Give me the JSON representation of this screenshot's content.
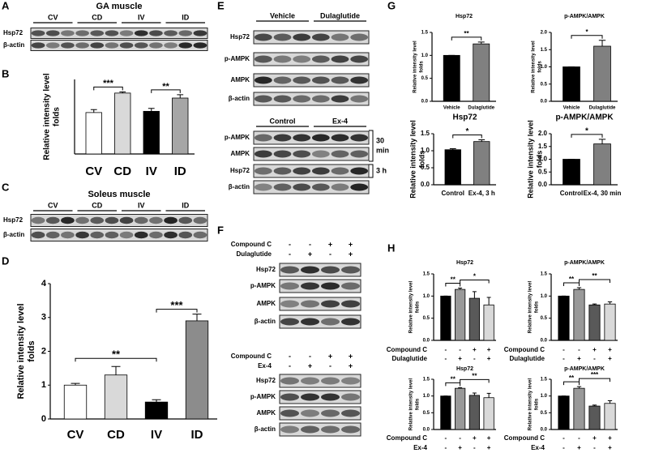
{
  "panel_labels": [
    "A",
    "B",
    "C",
    "D",
    "E",
    "F",
    "G",
    "H"
  ],
  "blots": {
    "A": {
      "title": "GA muscle",
      "groups": [
        "CV",
        "CD",
        "IV",
        "ID"
      ],
      "rows": [
        "Hsp72",
        "β-actin"
      ]
    },
    "C": {
      "title": "Soleus muscle",
      "groups": [
        "CV",
        "CD",
        "IV",
        "ID"
      ],
      "rows": [
        "Hsp72",
        "β-actin"
      ]
    },
    "E1": {
      "groups": [
        "Vehicle",
        "Dulaglutide"
      ],
      "rows": [
        "Hsp72",
        "p-AMPK",
        "AMPK",
        "β-actin"
      ]
    },
    "E2": {
      "groups": [
        "Control",
        "Ex-4"
      ],
      "rows": [
        "p-AMPK",
        "AMPK",
        "Hsp72",
        "β-actin"
      ],
      "brackets": [
        [
          "30",
          "min"
        ],
        [
          "3 h"
        ]
      ]
    },
    "F1": {
      "treatments": [
        {
          "name": "Compound C",
          "signs": [
            "-",
            "-",
            "+",
            "+"
          ]
        },
        {
          "name": "Dulaglutide",
          "signs": [
            "-",
            "+",
            "-",
            "+"
          ]
        }
      ],
      "rows": [
        "Hsp72",
        "p-AMPK",
        "AMPK",
        "β-actin"
      ]
    },
    "F2": {
      "treatments": [
        {
          "name": "Compound C",
          "signs": [
            "-",
            "-",
            "+",
            "+"
          ]
        },
        {
          "name": "Ex-4",
          "signs": [
            "-",
            "+",
            "-",
            "+"
          ]
        }
      ],
      "rows": [
        "Hsp72",
        "p-AMPK",
        "AMPK",
        "β-actin"
      ]
    }
  },
  "chart_data": [
    {
      "type": "bar",
      "categories": [
        "CV",
        "CD",
        "IV",
        "ID"
      ],
      "values": [
        1,
        1.47,
        1.03,
        1.35
      ],
      "errors": [
        0.07,
        0.03,
        0.07,
        0.08
      ],
      "colors": [
        "#ffffff",
        "#d9d9d9",
        "#000000",
        "#a6a6a6"
      ],
      "ylabel": [
        "Relative intensity level",
        "folds"
      ],
      "ylim": [
        0,
        1.8
      ],
      "annotations": [
        "***",
        "**"
      ]
    },
    {
      "type": "bar",
      "categories": [
        "CV",
        "CD",
        "IV",
        "ID"
      ],
      "values": [
        1,
        1.3,
        0.5,
        2.9
      ],
      "errors": [
        0.05,
        0.25,
        0.07,
        0.2
      ],
      "colors": [
        "#ffffff",
        "#d9d9d9",
        "#000000",
        "#8c8c8c"
      ],
      "ylabel": [
        "Relative intensity level",
        "folds"
      ],
      "ylim": [
        0,
        4
      ],
      "yticks": [
        0,
        1,
        2,
        3,
        4
      ],
      "annotations": [
        "**",
        "***"
      ]
    },
    {
      "type": "bar",
      "title": "Hsp72",
      "categories": [
        "Vehicle",
        "Dulaglutide"
      ],
      "values": [
        1,
        1.25
      ],
      "errors": [
        0,
        0.04
      ],
      "colors": [
        "#000000",
        "#808080"
      ],
      "ylabel": [
        "Relative intensity level",
        "folds"
      ],
      "ylim": [
        0,
        1.5
      ],
      "yticks": [
        {
          "value": 0,
          "label": "0.0"
        },
        {
          "value": 0.5,
          "label": "0.5"
        },
        {
          "value": 1,
          "label": "1.0"
        },
        {
          "value": 1.5,
          "label": "1.5"
        }
      ],
      "annotations": [
        "**"
      ]
    },
    {
      "type": "bar",
      "title": "p-AMPK/AMPK",
      "categories": [
        "Vehicle",
        "Dulaglutide"
      ],
      "values": [
        1,
        1.6
      ],
      "errors": [
        0,
        0.17
      ],
      "colors": [
        "#000000",
        "#808080"
      ],
      "ylabel": [
        "Relative intensity level",
        "folds"
      ],
      "ylim": [
        0,
        2
      ],
      "yticks": [
        {
          "value": 0,
          "label": "0.0"
        },
        {
          "value": 0.5,
          "label": "0.5"
        },
        {
          "value": 1,
          "label": "1.0"
        },
        {
          "value": 1.5,
          "label": "1.5"
        },
        {
          "value": 2,
          "label": "2.0"
        }
      ],
      "annotations": [
        "*"
      ]
    },
    {
      "type": "bar",
      "title": "Hsp72",
      "categories": [
        "Control",
        "Ex-4, 3 h"
      ],
      "values": [
        1.03,
        1.27
      ],
      "errors": [
        0.03,
        0.05
      ],
      "colors": [
        "#000000",
        "#808080"
      ],
      "ylabel": [
        "Relative intensity level",
        "folds"
      ],
      "ylim": [
        0,
        1.5
      ],
      "yticks": [
        {
          "value": 0,
          "label": "0.0"
        },
        {
          "value": 0.5,
          "label": "0.5"
        },
        {
          "value": 1,
          "label": "1.0"
        },
        {
          "value": 1.5,
          "label": "1.5"
        }
      ],
      "annotations": [
        "*"
      ]
    },
    {
      "type": "bar",
      "title": "p-AMPK/AMPK",
      "categories": [
        "Control",
        "Ex-4, 30 min"
      ],
      "values": [
        1,
        1.6
      ],
      "errors": [
        0,
        0.18
      ],
      "colors": [
        "#000000",
        "#808080"
      ],
      "ylabel": [
        "Relative intensity level",
        "folds"
      ],
      "ylim": [
        0,
        2
      ],
      "yticks": [
        {
          "value": 0,
          "label": "0.0"
        },
        {
          "value": 0.5,
          "label": "0.5"
        },
        {
          "value": 1,
          "label": "1.0"
        },
        {
          "value": 1.5,
          "label": "1.5"
        },
        {
          "value": 2,
          "label": "2.0"
        }
      ],
      "annotations": [
        "*"
      ]
    },
    {
      "type": "bar",
      "title": "Hsp72",
      "categories": [
        null,
        null,
        null,
        null
      ],
      "values": [
        1,
        1.15,
        0.95,
        0.8
      ],
      "errors": [
        0,
        0.03,
        0.15,
        0.17
      ],
      "colors": [
        "#000000",
        "#999999",
        "#595959",
        "#d9d9d9"
      ],
      "ylabel": [
        "Relative intensity level",
        "folds"
      ],
      "ylim": [
        0,
        1.5
      ],
      "yticks": [
        {
          "value": 0,
          "label": "0.0"
        },
        {
          "value": 0.5,
          "label": "0.5"
        },
        {
          "value": 1,
          "label": "1.0"
        },
        {
          "value": 1.5,
          "label": "1.5"
        }
      ],
      "treatments": [
        {
          "name": "Compound C",
          "signs": [
            "-",
            "-",
            "+",
            "+"
          ]
        },
        {
          "name": "Dulaglutide",
          "signs": [
            "-",
            "+",
            "-",
            "+"
          ]
        }
      ],
      "annotations": [
        "**",
        "*"
      ]
    },
    {
      "type": "bar",
      "title": "p-AMPK/AMPK",
      "categories": [
        null,
        null,
        null,
        null
      ],
      "values": [
        1,
        1.15,
        0.8,
        0.82
      ],
      "errors": [
        0,
        0.04,
        0.02,
        0.05
      ],
      "colors": [
        "#000000",
        "#999999",
        "#595959",
        "#d9d9d9"
      ],
      "ylabel": [
        "Relative intensity level",
        "folds"
      ],
      "ylim": [
        0,
        1.5
      ],
      "yticks": [
        {
          "value": 0,
          "label": "0.0"
        },
        {
          "value": 0.5,
          "label": "0.5"
        },
        {
          "value": 1,
          "label": "1.0"
        },
        {
          "value": 1.5,
          "label": "1.5"
        }
      ],
      "treatments": [
        {
          "name": "Compound C",
          "signs": [
            "-",
            "-",
            "+",
            "+"
          ]
        },
        {
          "name": "Dulaglutide",
          "signs": [
            "-",
            "+",
            "-",
            "+"
          ]
        }
      ],
      "annotations": [
        "**",
        "**"
      ]
    },
    {
      "type": "bar",
      "title": "Hsp72",
      "categories": [
        null,
        null,
        null,
        null
      ],
      "values": [
        1,
        1.23,
        1.02,
        0.95
      ],
      "errors": [
        0,
        0.02,
        0.07,
        0.13
      ],
      "colors": [
        "#000000",
        "#999999",
        "#595959",
        "#d9d9d9"
      ],
      "ylabel": [
        "Relative intensity level",
        "folds"
      ],
      "ylim": [
        0,
        1.5
      ],
      "yticks": [
        {
          "value": 0,
          "label": "0.0"
        },
        {
          "value": 0.5,
          "label": "0.5"
        },
        {
          "value": 1,
          "label": "1.0"
        },
        {
          "value": 1.5,
          "label": "1.5"
        }
      ],
      "treatments": [
        {
          "name": "Compound C",
          "signs": [
            "-",
            "-",
            "+",
            "+"
          ]
        },
        {
          "name": "Ex-4",
          "signs": [
            "-",
            "+",
            "-",
            "+"
          ]
        }
      ],
      "annotations": [
        "**",
        "**"
      ]
    },
    {
      "type": "bar",
      "title": "p-AMPK/AMPK",
      "categories": [
        null,
        null,
        null,
        null
      ],
      "values": [
        1,
        1.23,
        0.7,
        0.78
      ],
      "errors": [
        0,
        0.05,
        0.03,
        0.08
      ],
      "colors": [
        "#000000",
        "#999999",
        "#595959",
        "#d9d9d9"
      ],
      "ylabel": [
        "Relative intensity level",
        "folds"
      ],
      "ylim": [
        0,
        1.5
      ],
      "yticks": [
        {
          "value": 0,
          "label": "0.0"
        },
        {
          "value": 0.5,
          "label": "0.5"
        },
        {
          "value": 1,
          "label": "1.0"
        },
        {
          "value": 1.5,
          "label": "1.5"
        }
      ],
      "treatments": [
        {
          "name": "Compound C",
          "signs": [
            "-",
            "-",
            "+",
            "+"
          ]
        },
        {
          "name": "Ex-4",
          "signs": [
            "-",
            "+",
            "-",
            "+"
          ]
        }
      ],
      "annotations": [
        "**",
        "***"
      ]
    }
  ]
}
